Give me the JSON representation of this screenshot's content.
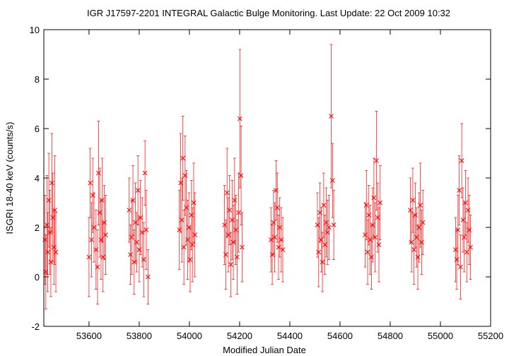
{
  "chart_data": {
    "type": "scatter",
    "title": "IGR J17597-2201   INTEGRAL Galactic Bulge Monitoring.  Last Update: 22 Oct 2009 10:32",
    "xlabel": "Modified Julian Date",
    "ylabel": "ISGRI 18-40 keV (counts/s)",
    "xlim": [
      53420,
      55200
    ],
    "ylim": [
      -2,
      10
    ],
    "xticks": [
      53600,
      53800,
      54000,
      54200,
      54400,
      54600,
      54800,
      55000,
      55200
    ],
    "yticks": [
      -2,
      0,
      2,
      4,
      6,
      8,
      10
    ],
    "grid": false,
    "legend": "none",
    "marker": "x",
    "error_bars": true,
    "colors": {
      "series": "#ff0000",
      "axes": "#000000",
      "background": "#ffffff"
    },
    "series": [
      {
        "points": [
          {
            "x": 53425,
            "y": 1.5,
            "err": 1.8
          },
          {
            "x": 53428,
            "y": 0.2,
            "err": 1.5
          },
          {
            "x": 53432,
            "y": 2.1,
            "err": 2.0
          },
          {
            "x": 53436,
            "y": 1.0,
            "err": 1.6
          },
          {
            "x": 53440,
            "y": 3.1,
            "err": 1.9
          },
          {
            "x": 53444,
            "y": 1.8,
            "err": 1.7
          },
          {
            "x": 53448,
            "y": 0.6,
            "err": 1.4
          },
          {
            "x": 53452,
            "y": 3.8,
            "err": 2.0
          },
          {
            "x": 53456,
            "y": 2.4,
            "err": 1.8
          },
          {
            "x": 53460,
            "y": 1.2,
            "err": 1.5
          },
          {
            "x": 53464,
            "y": 2.7,
            "err": 2.2
          },
          {
            "x": 53468,
            "y": 1.0,
            "err": 1.6
          },
          {
            "x": 53600,
            "y": 0.8,
            "err": 1.6
          },
          {
            "x": 53605,
            "y": 3.8,
            "err": 1.4
          },
          {
            "x": 53610,
            "y": 1.5,
            "err": 1.5
          },
          {
            "x": 53615,
            "y": 3.3,
            "err": 1.5
          },
          {
            "x": 53620,
            "y": 2.0,
            "err": 1.4
          },
          {
            "x": 53628,
            "y": 1.1,
            "err": 1.6
          },
          {
            "x": 53634,
            "y": 0.4,
            "err": 1.5
          },
          {
            "x": 53638,
            "y": 4.2,
            "err": 2.1
          },
          {
            "x": 53643,
            "y": 2.6,
            "err": 1.8
          },
          {
            "x": 53648,
            "y": 1.5,
            "err": 1.6
          },
          {
            "x": 53652,
            "y": 3.1,
            "err": 1.7
          },
          {
            "x": 53656,
            "y": 0.8,
            "err": 1.4
          },
          {
            "x": 53661,
            "y": 2.2,
            "err": 1.5
          },
          {
            "x": 53666,
            "y": 1.7,
            "err": 1.6
          },
          {
            "x": 53760,
            "y": 2.7,
            "err": 1.3
          },
          {
            "x": 53765,
            "y": 0.9,
            "err": 1.2
          },
          {
            "x": 53770,
            "y": 1.6,
            "err": 1.5
          },
          {
            "x": 53775,
            "y": 3.1,
            "err": 1.4
          },
          {
            "x": 53780,
            "y": 0.6,
            "err": 1.3
          },
          {
            "x": 53785,
            "y": 2.2,
            "err": 1.6
          },
          {
            "x": 53790,
            "y": 1.4,
            "err": 1.2
          },
          {
            "x": 53795,
            "y": 3.5,
            "err": 1.4
          },
          {
            "x": 53800,
            "y": 1.1,
            "err": 1.3
          },
          {
            "x": 53805,
            "y": 2.4,
            "err": 1.5
          },
          {
            "x": 53812,
            "y": 1.8,
            "err": 1.4
          },
          {
            "x": 53818,
            "y": 0.7,
            "err": 1.5
          },
          {
            "x": 53823,
            "y": 4.2,
            "err": 1.3
          },
          {
            "x": 53828,
            "y": 1.9,
            "err": 1.6
          },
          {
            "x": 53835,
            "y": 0.0,
            "err": 1.1
          },
          {
            "x": 53960,
            "y": 1.9,
            "err": 1.6
          },
          {
            "x": 53965,
            "y": 3.8,
            "err": 2.0
          },
          {
            "x": 53970,
            "y": 2.3,
            "err": 1.7
          },
          {
            "x": 53974,
            "y": 4.8,
            "err": 1.7
          },
          {
            "x": 53978,
            "y": 1.2,
            "err": 1.5
          },
          {
            "x": 53983,
            "y": 4.1,
            "err": 1.6
          },
          {
            "x": 53988,
            "y": 2.8,
            "err": 1.5
          },
          {
            "x": 53993,
            "y": 1.5,
            "err": 1.6
          },
          {
            "x": 53998,
            "y": 2.0,
            "err": 1.4
          },
          {
            "x": 54003,
            "y": 0.7,
            "err": 1.3
          },
          {
            "x": 54008,
            "y": 2.5,
            "err": 1.4
          },
          {
            "x": 54012,
            "y": 1.3,
            "err": 1.5
          },
          {
            "x": 54017,
            "y": 3.0,
            "err": 1.6
          },
          {
            "x": 54022,
            "y": 1.7,
            "err": 1.7
          },
          {
            "x": 54140,
            "y": 2.1,
            "err": 1.6
          },
          {
            "x": 54145,
            "y": 0.9,
            "err": 1.4
          },
          {
            "x": 54150,
            "y": 3.4,
            "err": 1.8
          },
          {
            "x": 54155,
            "y": 1.7,
            "err": 1.5
          },
          {
            "x": 54160,
            "y": 2.7,
            "err": 1.4
          },
          {
            "x": 54165,
            "y": 0.5,
            "err": 1.3
          },
          {
            "x": 54170,
            "y": 2.3,
            "err": 1.6
          },
          {
            "x": 54175,
            "y": 1.4,
            "err": 1.5
          },
          {
            "x": 54180,
            "y": 3.1,
            "err": 1.7
          },
          {
            "x": 54185,
            "y": 1.9,
            "err": 1.4
          },
          {
            "x": 54190,
            "y": 0.8,
            "err": 1.5
          },
          {
            "x": 54196,
            "y": 2.6,
            "err": 1.6
          },
          {
            "x": 54201,
            "y": 6.4,
            "err": 2.8
          },
          {
            "x": 54206,
            "y": 4.1,
            "err": 2.0
          },
          {
            "x": 54210,
            "y": 1.2,
            "err": 1.4
          },
          {
            "x": 54325,
            "y": 1.5,
            "err": 1.3
          },
          {
            "x": 54330,
            "y": 0.9,
            "err": 1.2
          },
          {
            "x": 54335,
            "y": 2.2,
            "err": 1.3
          },
          {
            "x": 54340,
            "y": 1.6,
            "err": 1.4
          },
          {
            "x": 54345,
            "y": 3.5,
            "err": 1.2
          },
          {
            "x": 54350,
            "y": 2.8,
            "err": 1.4
          },
          {
            "x": 54355,
            "y": 1.2,
            "err": 1.3
          },
          {
            "x": 54360,
            "y": 2.0,
            "err": 1.2
          },
          {
            "x": 54366,
            "y": 1.5,
            "err": 1.3
          },
          {
            "x": 54372,
            "y": 1.1,
            "err": 1.3
          },
          {
            "x": 54510,
            "y": 2.1,
            "err": 1.3
          },
          {
            "x": 54515,
            "y": 1.0,
            "err": 1.4
          },
          {
            "x": 54520,
            "y": 2.6,
            "err": 1.2
          },
          {
            "x": 54525,
            "y": 1.5,
            "err": 1.3
          },
          {
            "x": 54530,
            "y": 0.6,
            "err": 1.2
          },
          {
            "x": 54535,
            "y": 2.9,
            "err": 1.3
          },
          {
            "x": 54540,
            "y": 1.3,
            "err": 1.2
          },
          {
            "x": 54545,
            "y": 2.2,
            "err": 1.4
          },
          {
            "x": 54550,
            "y": 1.8,
            "err": 1.3
          },
          {
            "x": 54556,
            "y": 2.0,
            "err": 1.3
          },
          {
            "x": 54565,
            "y": 6.5,
            "err": 2.9
          },
          {
            "x": 54570,
            "y": 3.9,
            "err": 1.5
          },
          {
            "x": 54575,
            "y": 2.1,
            "err": 1.4
          },
          {
            "x": 54700,
            "y": 1.7,
            "err": 1.3
          },
          {
            "x": 54705,
            "y": 2.9,
            "err": 1.4
          },
          {
            "x": 54710,
            "y": 1.0,
            "err": 1.3
          },
          {
            "x": 54715,
            "y": 2.5,
            "err": 1.2
          },
          {
            "x": 54720,
            "y": 1.5,
            "err": 1.4
          },
          {
            "x": 54725,
            "y": 0.8,
            "err": 1.3
          },
          {
            "x": 54730,
            "y": 2.1,
            "err": 1.5
          },
          {
            "x": 54735,
            "y": 3.2,
            "err": 1.6
          },
          {
            "x": 54740,
            "y": 1.6,
            "err": 1.4
          },
          {
            "x": 54745,
            "y": 4.7,
            "err": 2.0
          },
          {
            "x": 54750,
            "y": 2.4,
            "err": 1.4
          },
          {
            "x": 54755,
            "y": 1.3,
            "err": 1.5
          },
          {
            "x": 54760,
            "y": 3.0,
            "err": 1.5
          },
          {
            "x": 54880,
            "y": 2.7,
            "err": 1.3
          },
          {
            "x": 54885,
            "y": 1.4,
            "err": 1.2
          },
          {
            "x": 54890,
            "y": 3.1,
            "err": 1.3
          },
          {
            "x": 54895,
            "y": 1.1,
            "err": 1.4
          },
          {
            "x": 54900,
            "y": 2.5,
            "err": 1.3
          },
          {
            "x": 54905,
            "y": 1.6,
            "err": 1.2
          },
          {
            "x": 54910,
            "y": 0.8,
            "err": 1.3
          },
          {
            "x": 54915,
            "y": 2.0,
            "err": 1.4
          },
          {
            "x": 54920,
            "y": 2.9,
            "err": 1.7
          },
          {
            "x": 54925,
            "y": 1.4,
            "err": 1.3
          },
          {
            "x": 54930,
            "y": 2.2,
            "err": 1.3
          },
          {
            "x": 55060,
            "y": 1.1,
            "err": 1.3
          },
          {
            "x": 55065,
            "y": 0.7,
            "err": 1.2
          },
          {
            "x": 55070,
            "y": 1.9,
            "err": 1.4
          },
          {
            "x": 55075,
            "y": 3.5,
            "err": 1.4
          },
          {
            "x": 55080,
            "y": 0.4,
            "err": 1.3
          },
          {
            "x": 55085,
            "y": 4.7,
            "err": 1.5
          },
          {
            "x": 55090,
            "y": 2.3,
            "err": 1.3
          },
          {
            "x": 55095,
            "y": 1.6,
            "err": 1.4
          },
          {
            "x": 55100,
            "y": 3.0,
            "err": 1.3
          },
          {
            "x": 55105,
            "y": 1.0,
            "err": 1.2
          },
          {
            "x": 55110,
            "y": 2.7,
            "err": 1.3
          },
          {
            "x": 55115,
            "y": 1.9,
            "err": 1.4
          },
          {
            "x": 55120,
            "y": 1.2,
            "err": 1.3
          }
        ]
      }
    ]
  }
}
